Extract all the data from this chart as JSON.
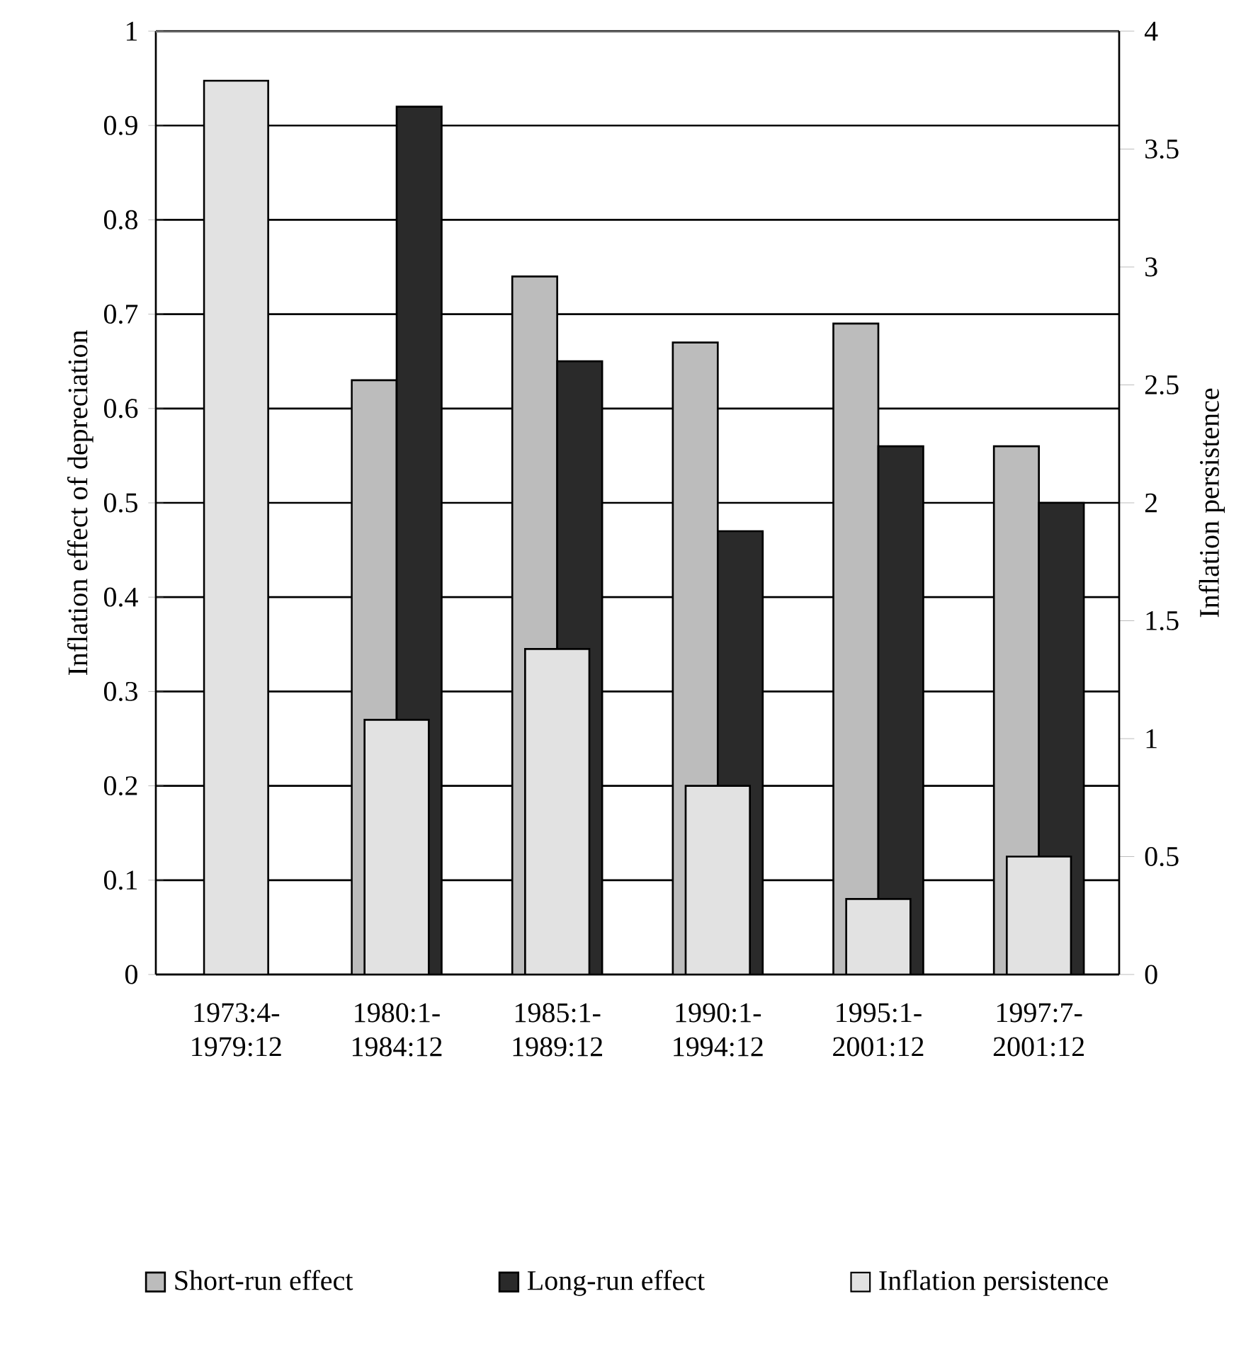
{
  "chart_data": {
    "type": "bar",
    "categories": [
      "1973:4-1979:12",
      "1980:1-1984:12",
      "1985:1-1989:12",
      "1990:1-1994:12",
      "1995:1-2001:12",
      "1997:7-2001:12"
    ],
    "ylabel": "Inflation effect of depreciation",
    "y2label": "Inflation persistence",
    "ylim": [
      0,
      1
    ],
    "yticks": [
      0,
      0.1,
      0.2,
      0.3,
      0.4,
      0.5,
      0.6,
      0.7,
      0.8,
      0.9,
      1
    ],
    "y2lim": [
      0,
      4
    ],
    "y2ticks": [
      0,
      0.5,
      1,
      1.5,
      2,
      2.5,
      3,
      3.5,
      4
    ],
    "grid": "y",
    "legend": "bottom",
    "series": [
      {
        "name": "Short-run effect",
        "color": "#bcbcbc",
        "values": [
          null,
          0.63,
          0.74,
          0.67,
          0.69,
          0.56
        ]
      },
      {
        "name": "Long-run effect",
        "color": "#2a2a2a",
        "values": [
          null,
          0.92,
          0.65,
          0.47,
          0.56,
          0.5
        ]
      },
      {
        "name": "Inflation persistence",
        "color": "#e2e2e2",
        "axis": "y2",
        "values": [
          3.79,
          1.08,
          1.38,
          0.8,
          0.32,
          0.5
        ]
      }
    ]
  }
}
